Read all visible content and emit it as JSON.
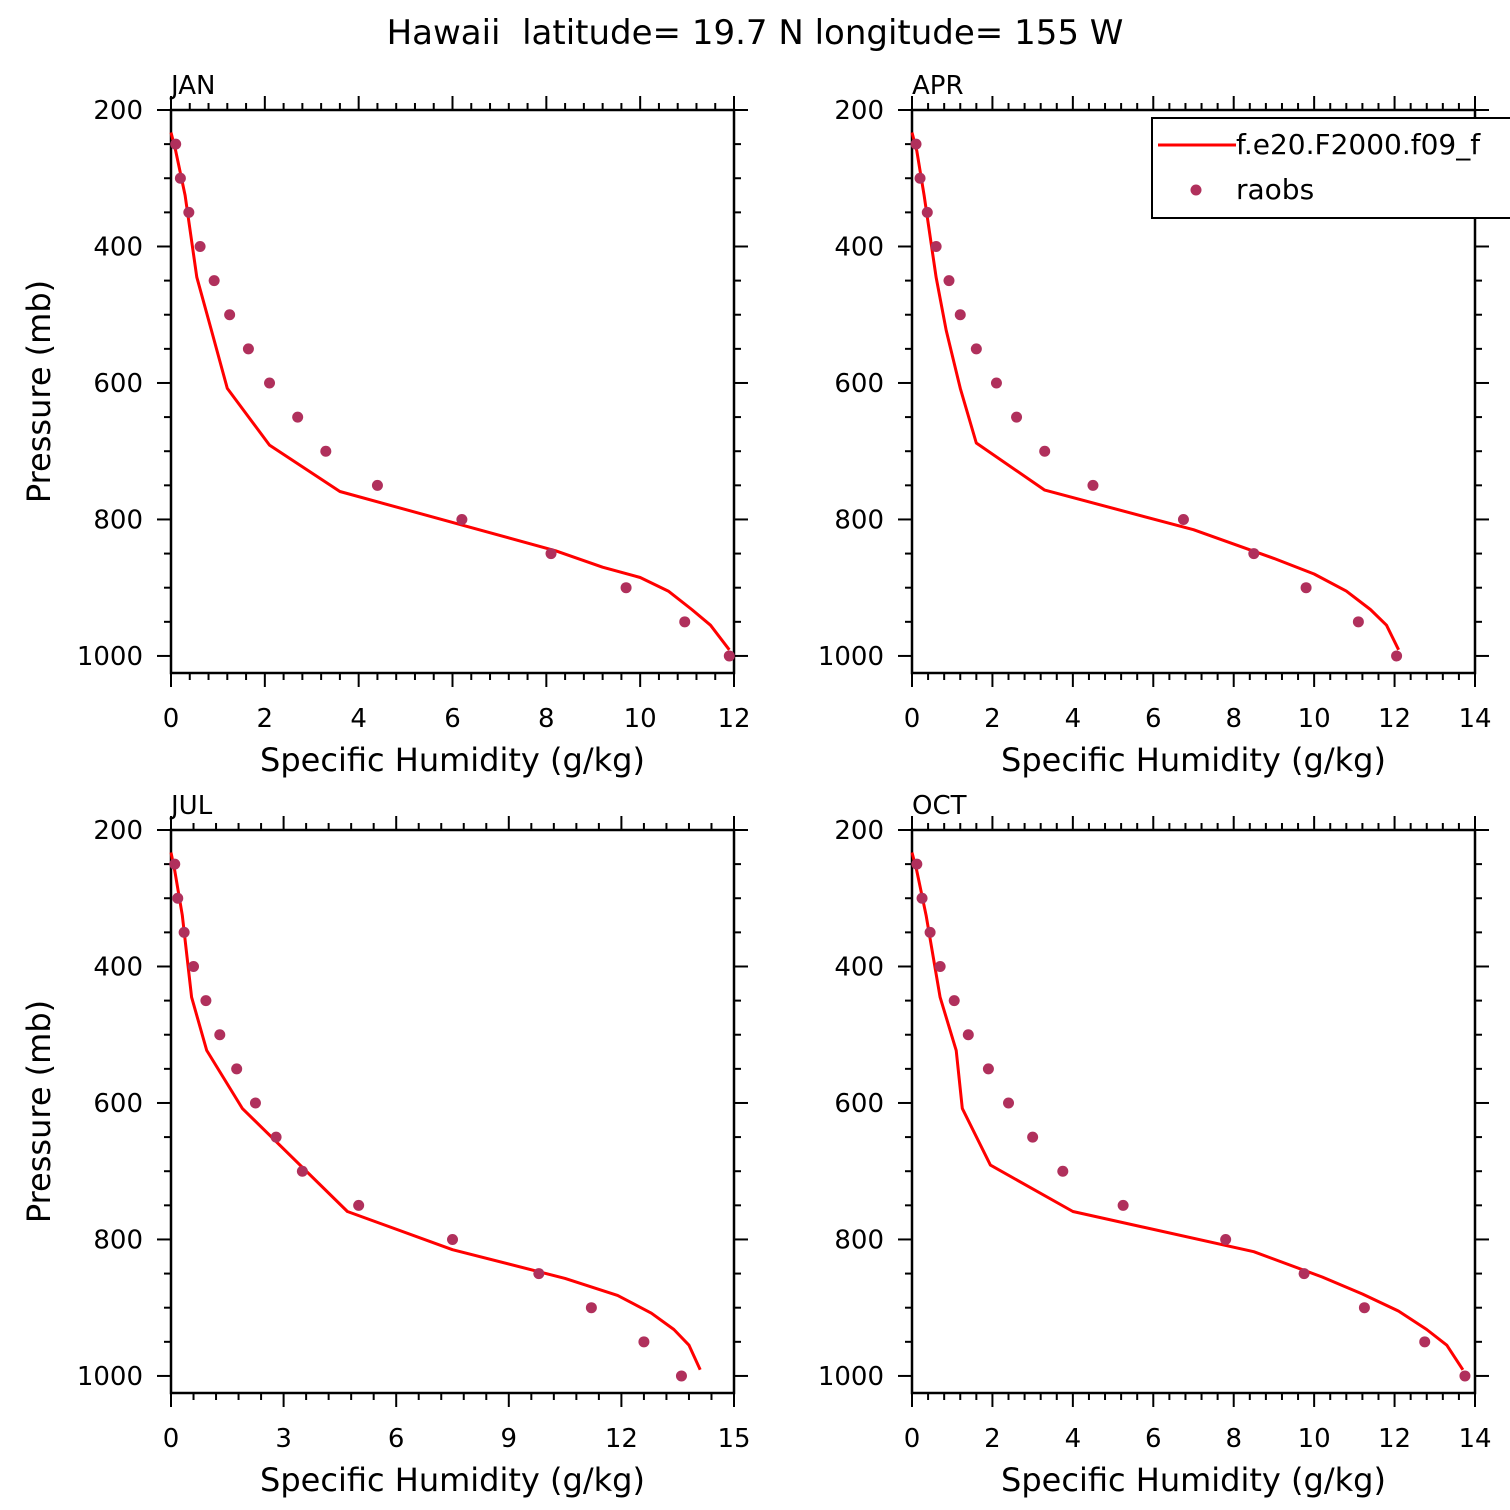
{
  "figure_title": "Hawaii  latitude= 19.7 N longitude= 155 W",
  "legend": {
    "placement": "top-right of APR panel",
    "model_label": "f.e20.F2000.f09_f",
    "obs_label": "raobs",
    "model_color": "#ff0000",
    "obs_color": "#b0305c"
  },
  "chart_data": [
    {
      "type": "line",
      "title": "JAN",
      "xlabel": "Specific Humidity (g/kg)",
      "ylabel": "Pressure (mb)",
      "xlim": [
        0,
        12
      ],
      "ylim": [
        200,
        1025
      ],
      "y_inverted": true,
      "xticks": [
        0,
        2,
        4,
        6,
        8,
        10,
        12
      ],
      "yticks": [
        200,
        400,
        600,
        800,
        1000
      ],
      "series": [
        {
          "name": "f.e20.F2000.f09_f",
          "kind": "line",
          "x": [
            0.0,
            0.1,
            0.3,
            0.55,
            0.85,
            1.2,
            2.1,
            3.6,
            6.3,
            8.2,
            9.2,
            10.0,
            10.6,
            11.1,
            11.5,
            11.9
          ],
          "y": [
            233,
            260,
            325,
            445,
            520,
            608,
            691,
            759,
            810,
            846,
            870,
            885,
            905,
            932,
            955,
            991
          ]
        },
        {
          "name": "raobs",
          "kind": "scatter",
          "x": [
            0.1,
            0.2,
            0.38,
            0.62,
            0.92,
            1.25,
            1.65,
            2.1,
            2.7,
            3.3,
            4.4,
            6.2,
            8.1,
            9.7,
            10.95,
            11.9
          ],
          "y": [
            250,
            300,
            350,
            400,
            450,
            500,
            550,
            600,
            650,
            700,
            750,
            800,
            850,
            900,
            950,
            1000
          ]
        }
      ]
    },
    {
      "type": "line",
      "title": "APR",
      "xlabel": "Specific Humidity (g/kg)",
      "ylabel": "",
      "xlim": [
        0,
        14
      ],
      "ylim": [
        200,
        1025
      ],
      "y_inverted": true,
      "xticks": [
        0,
        2,
        4,
        6,
        8,
        10,
        12,
        14
      ],
      "yticks": [
        200,
        400,
        600,
        800,
        1000
      ],
      "series": [
        {
          "name": "f.e20.F2000.f09_f",
          "kind": "line",
          "x": [
            0.0,
            0.12,
            0.3,
            0.6,
            0.85,
            1.2,
            1.6,
            3.3,
            7.0,
            9.0,
            10.0,
            10.8,
            11.4,
            11.8,
            12.1
          ],
          "y": [
            233,
            260,
            325,
            445,
            523,
            608,
            688,
            757,
            815,
            857,
            880,
            905,
            932,
            955,
            991
          ]
        },
        {
          "name": "raobs",
          "kind": "scatter",
          "x": [
            0.1,
            0.2,
            0.38,
            0.6,
            0.92,
            1.2,
            1.6,
            2.1,
            2.6,
            3.3,
            4.5,
            6.75,
            8.5,
            9.8,
            11.1,
            12.05
          ],
          "y": [
            250,
            300,
            350,
            400,
            450,
            500,
            550,
            600,
            650,
            700,
            750,
            800,
            850,
            900,
            950,
            1000
          ]
        }
      ]
    },
    {
      "type": "line",
      "title": "JUL",
      "xlabel": "Specific Humidity (g/kg)",
      "ylabel": "Pressure (mb)",
      "xlim": [
        0,
        15
      ],
      "ylim": [
        200,
        1025
      ],
      "y_inverted": true,
      "xticks": [
        0,
        3,
        6,
        9,
        12,
        15
      ],
      "yticks": [
        200,
        400,
        600,
        800,
        1000
      ],
      "series": [
        {
          "name": "f.e20.F2000.f09_f",
          "kind": "line",
          "x": [
            0.0,
            0.1,
            0.3,
            0.55,
            0.95,
            1.9,
            4.7,
            7.5,
            10.5,
            11.9,
            12.8,
            13.4,
            13.8,
            14.1
          ],
          "y": [
            233,
            260,
            325,
            445,
            523,
            608,
            759,
            815,
            857,
            882,
            908,
            932,
            955,
            991
          ]
        },
        {
          "name": "raobs",
          "kind": "scatter",
          "x": [
            0.1,
            0.18,
            0.35,
            0.6,
            0.93,
            1.3,
            1.75,
            2.25,
            2.8,
            3.5,
            5.0,
            7.5,
            9.8,
            11.2,
            12.6,
            13.6
          ],
          "y": [
            250,
            300,
            350,
            400,
            450,
            500,
            550,
            600,
            650,
            700,
            750,
            800,
            850,
            900,
            950,
            1000
          ]
        }
      ]
    },
    {
      "type": "line",
      "title": "OCT",
      "xlabel": "Specific Humidity (g/kg)",
      "ylabel": "",
      "xlim": [
        0,
        14
      ],
      "ylim": [
        200,
        1025
      ],
      "y_inverted": true,
      "xticks": [
        0,
        2,
        4,
        6,
        8,
        10,
        12,
        14
      ],
      "yticks": [
        200,
        400,
        600,
        800,
        1000
      ],
      "series": [
        {
          "name": "f.e20.F2000.f09_f",
          "kind": "line",
          "x": [
            0.0,
            0.12,
            0.35,
            0.7,
            1.1,
            1.25,
            1.95,
            4.0,
            8.5,
            10.2,
            11.2,
            12.1,
            12.8,
            13.3,
            13.7
          ],
          "y": [
            233,
            260,
            325,
            445,
            523,
            608,
            691,
            759,
            818,
            855,
            880,
            905,
            932,
            955,
            991
          ]
        },
        {
          "name": "raobs",
          "kind": "scatter",
          "x": [
            0.12,
            0.25,
            0.45,
            0.7,
            1.05,
            1.4,
            1.9,
            2.4,
            3.0,
            3.75,
            5.25,
            7.8,
            9.75,
            11.25,
            12.75,
            13.75
          ],
          "y": [
            250,
            300,
            350,
            400,
            450,
            500,
            550,
            600,
            650,
            700,
            750,
            800,
            850,
            900,
            950,
            1000
          ]
        }
      ]
    }
  ]
}
